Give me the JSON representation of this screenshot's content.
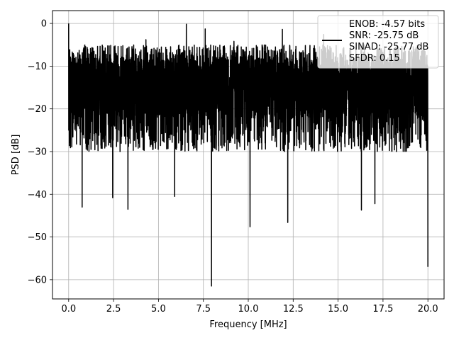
{
  "chart_data": {
    "type": "line",
    "title": "",
    "xlabel": "Frequency [MHz]",
    "ylabel": "PSD [dB]",
    "xlim": [
      -0.9,
      20.9
    ],
    "ylim": [
      -64.5,
      3
    ],
    "xticks": [
      0.0,
      2.5,
      5.0,
      7.5,
      10.0,
      12.5,
      15.0,
      17.5,
      20.0
    ],
    "xtick_labels": [
      "0.0",
      "2.5",
      "5.0",
      "7.5",
      "10.0",
      "12.5",
      "15.0",
      "17.5",
      "20.0"
    ],
    "yticks": [
      0,
      -10,
      -20,
      -30,
      -40,
      -50,
      -60
    ],
    "ytick_labels": [
      "0",
      "−10",
      "−20",
      "−30",
      "−40",
      "−50",
      "−60"
    ],
    "grid": true,
    "legend_position": "top-right",
    "line_color": "#000000",
    "series": [
      {
        "name": "ENOB: -4.57 bits\nSNR: -25.75 dB\nSINAD: -25.77 dB\nSFDR: 0.15",
        "x_range": [
          0,
          20
        ],
        "baseline_db": -15,
        "noise_floor_min_db": -30,
        "noise_ceiling_max_db": -3,
        "peaks": [
          {
            "x": 0.0,
            "y": 0.0
          },
          {
            "x": 1.25,
            "y": -6.8
          },
          {
            "x": 4.3,
            "y": -3.8
          },
          {
            "x": 6.55,
            "y": -0.2
          },
          {
            "x": 7.6,
            "y": -1.3
          },
          {
            "x": 9.2,
            "y": -4.2
          },
          {
            "x": 11.9,
            "y": -1.4
          },
          {
            "x": 14.2,
            "y": -2.6
          }
        ],
        "dips": [
          {
            "x": 0.75,
            "y": -43.0
          },
          {
            "x": 2.45,
            "y": -40.8
          },
          {
            "x": 3.3,
            "y": -43.5
          },
          {
            "x": 5.9,
            "y": -40.5
          },
          {
            "x": 7.95,
            "y": -61.5
          },
          {
            "x": 10.1,
            "y": -47.6
          },
          {
            "x": 12.2,
            "y": -46.6
          },
          {
            "x": 16.3,
            "y": -43.7
          },
          {
            "x": 17.05,
            "y": -42.2
          },
          {
            "x": 20.0,
            "y": -57.0
          }
        ]
      }
    ]
  }
}
